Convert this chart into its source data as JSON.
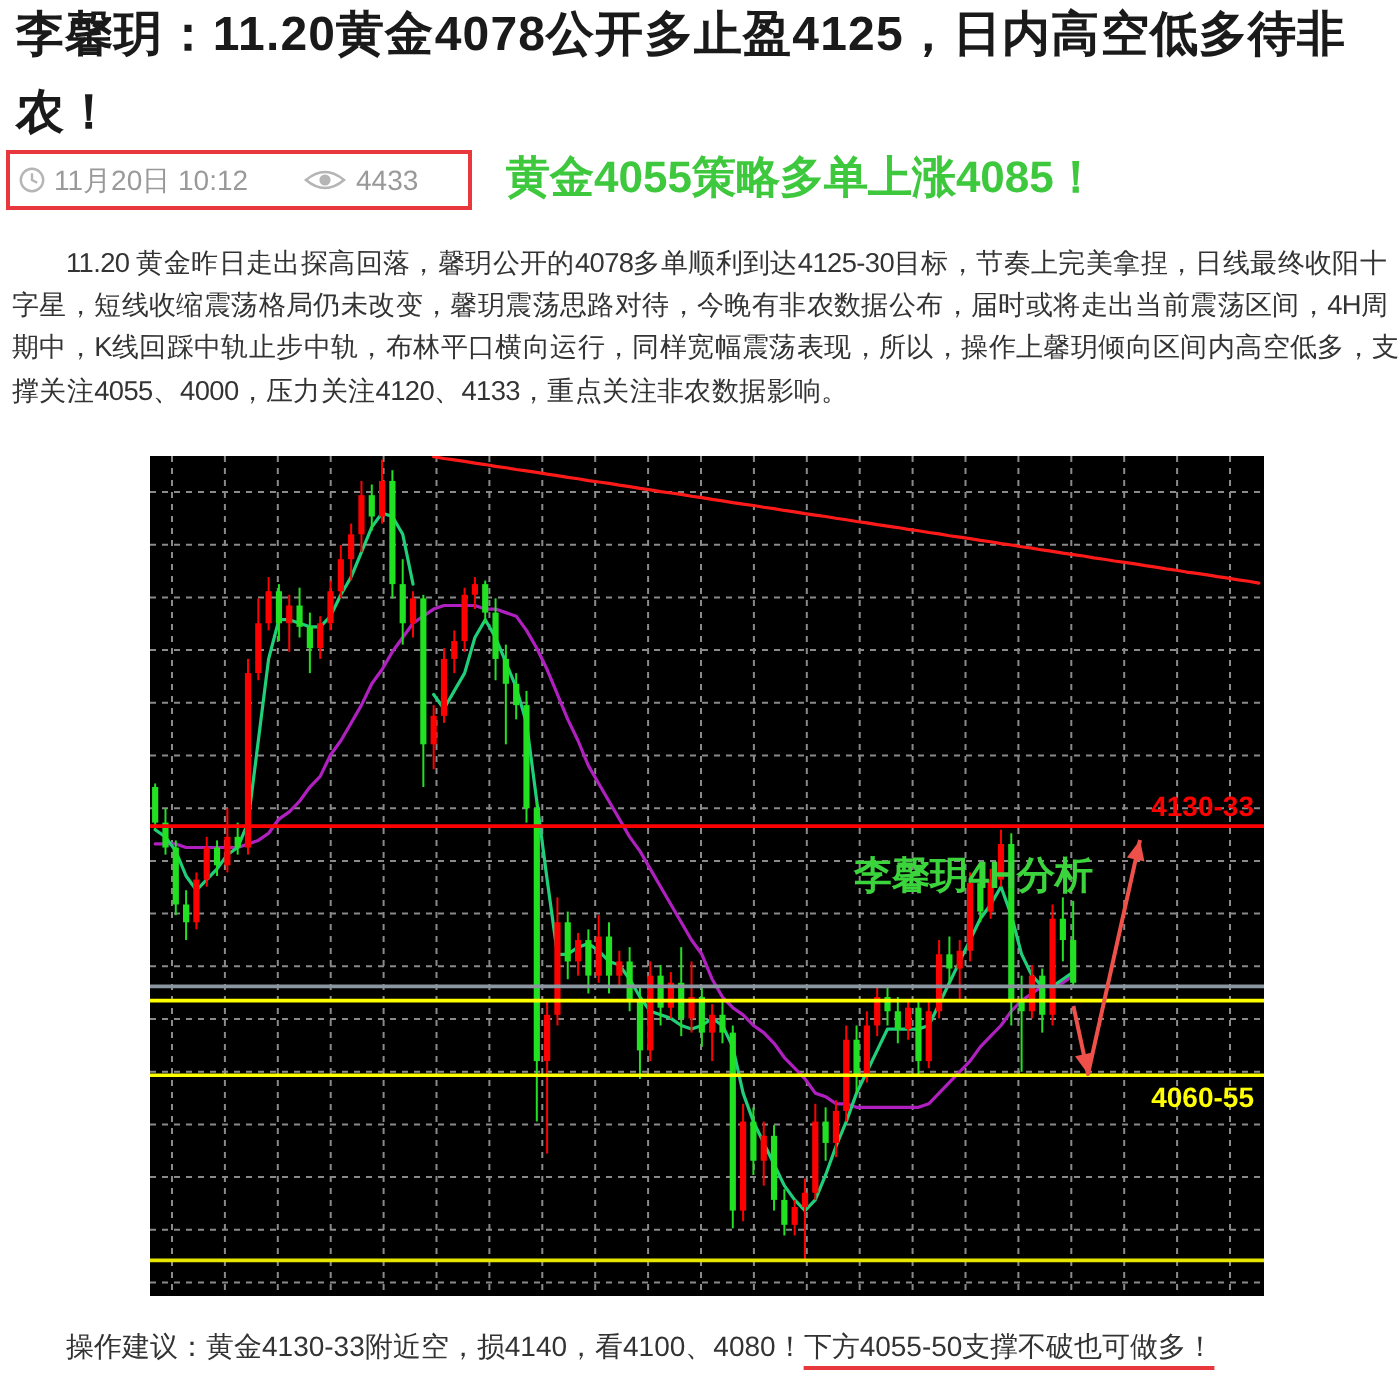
{
  "chart_data": {
    "type": "candlestick",
    "title": "李馨玥：11.20黄金4078公开多止盈4125，日内高空低多待非农！",
    "annotations": [
      "11月20日 10:12",
      "4433",
      "黄金4055策略多单上涨4085！",
      "11.20 黄金昨日走出探高回落，馨玥公开的4078多单顺利到达4125-30目标，节奏上完美拿捏，日线最终收阳十字星，短线收缩震荡格局仍未改变，馨玥震荡思路对待，今晚有非农数据公布，届时或将走出当前震荡区间，4H周期中，K线回踩中轨止步中轨，布林平口横向运行，同样宽幅震荡表现，所以，操作上馨玥倾向区间内高空低多，支撑关注4055、4000，压力关注4120、4133，重点关注非农数据影响。",
      "李馨玥4H分析",
      "操作建议：黄金4130-33附近空，损4140，看4100、4080！",
      "下方4055-50支撑不破也可做多！"
    ],
    "ylim": [
      3998,
      4234
    ],
    "grid": true,
    "categories": [
      null,
      null,
      null,
      null,
      null,
      null,
      null,
      null,
      null,
      null,
      null,
      null,
      null,
      null,
      null,
      null,
      null,
      null,
      null,
      null,
      null,
      null,
      null,
      null,
      null,
      null,
      null,
      null,
      null,
      null,
      null,
      null,
      null,
      null,
      null,
      null,
      null,
      null,
      null,
      null,
      null,
      null,
      null,
      null,
      null,
      null,
      null,
      null,
      null,
      null,
      null,
      null,
      null,
      null,
      null,
      null,
      null,
      null,
      null,
      null,
      null,
      null,
      null,
      null,
      null,
      null,
      null,
      null,
      null,
      null,
      null,
      null,
      null,
      null,
      null,
      null,
      null,
      null,
      null,
      null,
      null,
      null,
      null,
      null,
      null,
      null,
      null,
      null,
      null,
      null,
      null,
      null,
      null,
      null,
      null,
      null,
      null,
      null,
      null,
      null,
      null,
      null,
      null,
      null,
      null,
      null,
      null,
      null
    ],
    "ohlc": [
      [
        4141,
        4142,
        4129,
        4131
      ],
      [
        4131,
        4135,
        4122,
        4124
      ],
      [
        4124,
        4126,
        4105,
        4108
      ],
      [
        4108,
        4112,
        4098,
        4103
      ],
      [
        4103,
        4117,
        4101,
        4115
      ],
      [
        4115,
        4127,
        4113,
        4124
      ],
      [
        4124,
        4126,
        4116,
        4119
      ],
      [
        4119,
        4135,
        4117,
        4127
      ],
      [
        4127,
        4131,
        4122,
        4124
      ],
      [
        4124,
        4177,
        4122,
        4173
      ],
      [
        4173,
        4194,
        4171,
        4187
      ],
      [
        4187,
        4200,
        4185,
        4196
      ],
      [
        4196,
        4198,
        4182,
        4187
      ],
      [
        4187,
        4195,
        4179,
        4192
      ],
      [
        4192,
        4197,
        4183,
        4186
      ],
      [
        4186,
        4190,
        4173,
        4180
      ],
      [
        4180,
        4189,
        4177,
        4187
      ],
      [
        4187,
        4199,
        4185,
        4196
      ],
      [
        4196,
        4209,
        4194,
        4205
      ],
      [
        4205,
        4215,
        4199,
        4212
      ],
      [
        4212,
        4227,
        4207,
        4223
      ],
      [
        4223,
        4226,
        4213,
        4217
      ],
      [
        4217,
        4233,
        4215,
        4227
      ],
      [
        4227,
        4230,
        4194,
        4198
      ],
      [
        4198,
        4205,
        4181,
        4187
      ],
      [
        4187,
        4196,
        4183,
        4194
      ],
      [
        4194,
        4195,
        4141,
        4153
      ],
      [
        4153,
        4164,
        4146,
        4161
      ],
      [
        4161,
        4180,
        4159,
        4177
      ],
      [
        4177,
        4185,
        4173,
        4182
      ],
      [
        4182,
        4197,
        4179,
        4195
      ],
      [
        4195,
        4200,
        4191,
        4198
      ],
      [
        4198,
        4199,
        4187,
        4190
      ],
      [
        4190,
        4194,
        4171,
        4177
      ],
      [
        4177,
        4181,
        4153,
        4170
      ],
      [
        4170,
        4173,
        4160,
        4164
      ],
      [
        4164,
        4168,
        4131,
        4135
      ],
      [
        4135,
        4137,
        4047,
        4064
      ],
      [
        4064,
        4081,
        4038,
        4077
      ],
      [
        4077,
        4110,
        4074,
        4103
      ],
      [
        4103,
        4106,
        4087,
        4092
      ],
      [
        4092,
        4100,
        4088,
        4098
      ],
      [
        4098,
        4101,
        4083,
        4088
      ],
      [
        4088,
        4105,
        4086,
        4099
      ],
      [
        4099,
        4103,
        4083,
        4088
      ],
      [
        4088,
        4095,
        4085,
        4092
      ],
      [
        4092,
        4096,
        4078,
        4081
      ],
      [
        4081,
        4085,
        4059,
        4067
      ],
      [
        4067,
        4092,
        4064,
        4088
      ],
      [
        4088,
        4091,
        4074,
        4079
      ],
      [
        4079,
        4089,
        4076,
        4086
      ],
      [
        4086,
        4096,
        4071,
        4076
      ],
      [
        4076,
        4092,
        4072,
        4082
      ],
      [
        4082,
        4085,
        4068,
        4072
      ],
      [
        4072,
        4080,
        4064,
        4077
      ],
      [
        4077,
        4081,
        4069,
        4072
      ],
      [
        4072,
        4074,
        4017,
        4022
      ],
      [
        4022,
        4052,
        4019,
        4047
      ],
      [
        4047,
        4051,
        4032,
        4036
      ],
      [
        4036,
        4047,
        4029,
        4043
      ],
      [
        4043,
        4046,
        4022,
        4025
      ],
      [
        4025,
        4028,
        4015,
        4018
      ],
      [
        4018,
        4025,
        4015,
        4023
      ],
      [
        4023,
        4031,
        4008,
        4027
      ],
      [
        4027,
        4052,
        4025,
        4047
      ],
      [
        4047,
        4051,
        4036,
        4041
      ],
      [
        4041,
        4053,
        4037,
        4050
      ],
      [
        4050,
        4074,
        4047,
        4070
      ],
      [
        4070,
        4074,
        4055,
        4060
      ],
      [
        4060,
        4078,
        4058,
        4074
      ],
      [
        4074,
        4085,
        4071,
        4082
      ],
      [
        4082,
        4085,
        4074,
        4078
      ],
      [
        4078,
        4082,
        4069,
        4073
      ],
      [
        4073,
        4081,
        4070,
        4079
      ],
      [
        4079,
        4081,
        4060,
        4064
      ],
      [
        4064,
        4081,
        4062,
        4078
      ],
      [
        4078,
        4098,
        4076,
        4094
      ],
      [
        4094,
        4099,
        4086,
        4090
      ],
      [
        4090,
        4098,
        4081,
        4095
      ],
      [
        4095,
        4117,
        4092,
        4114
      ],
      [
        4114,
        4119,
        4103,
        4106
      ],
      [
        4106,
        4118,
        4104,
        4115
      ],
      [
        4115,
        4129,
        4113,
        4125
      ],
      [
        4125,
        4128,
        4074,
        4081
      ],
      [
        4081,
        4088,
        4061,
        4078
      ],
      [
        4078,
        4091,
        4076,
        4088
      ],
      [
        4088,
        4090,
        4072,
        4077
      ],
      [
        4077,
        4108,
        4074,
        4104
      ],
      [
        4104,
        4110,
        4092,
        4098
      ],
      [
        4098,
        4109,
        4085,
        4086
      ],
      null,
      null,
      null,
      null,
      null,
      null,
      null,
      null,
      null,
      null,
      null,
      null,
      null,
      null,
      null,
      null,
      null,
      null
    ],
    "colors": [
      "#22e022",
      "#22e022",
      "#22e022",
      "#22e022",
      "#ff0000",
      "#ff0000",
      "#22e022",
      "#ff0000",
      "#22e022",
      "#ff0000",
      "#ff0000",
      "#ff0000",
      "#22e022",
      "#ff0000",
      "#22e022",
      "#22e022",
      "#ff0000",
      "#ff0000",
      "#ff0000",
      "#ff0000",
      "#ff0000",
      "#22e022",
      "#ff0000",
      "#22e022",
      "#22e022",
      "#ff0000",
      "#22e022",
      "#ff0000",
      "#ff0000",
      "#ff0000",
      "#ff0000",
      "#ff0000",
      "#22e022",
      "#22e022",
      "#22e022",
      "#22e022",
      "#22e022",
      "#22e022",
      "#ff0000",
      "#ff0000",
      "#22e022",
      "#ff0000",
      "#22e022",
      "#ff0000",
      "#22e022",
      "#ff0000",
      "#22e022",
      "#22e022",
      "#ff0000",
      "#22e022",
      "#ff0000",
      "#22e022",
      "#ff0000",
      "#22e022",
      "#ff0000",
      "#22e022",
      "#22e022",
      "#ff0000",
      "#22e022",
      "#ff0000",
      "#22e022",
      "#22e022",
      "#ff0000",
      "#ff0000",
      "#ff0000",
      "#22e022",
      "#ff0000",
      "#ff0000",
      "#22e022",
      "#ff0000",
      "#ff0000",
      "#22e022",
      "#22e022",
      "#ff0000",
      "#22e022",
      "#ff0000",
      "#ff0000",
      "#22e022",
      "#ff0000",
      "#ff0000",
      "#22e022",
      "#ff0000",
      "#ff0000",
      "#22e022",
      "#22e022",
      "#ff0000",
      "#22e022",
      "#ff0000",
      "#22e022",
      "#22e022",
      null,
      null,
      null,
      null,
      null,
      null,
      null,
      null,
      null,
      null,
      null,
      null,
      null,
      null,
      null,
      null,
      null,
      null
    ],
    "series": [
      {
        "type": "line",
        "color": "#ff1a1a",
        "values": [
          null,
          null,
          null,
          null,
          null,
          null,
          null,
          null,
          null,
          null,
          null,
          null,
          null,
          null,
          null,
          null,
          null,
          null,
          null,
          null,
          null,
          null,
          null,
          null,
          null,
          null,
          null,
          4233.8,
          4233.3,
          4232.9,
          4232.5,
          4232.0,
          4231.6,
          4231.1,
          4230.7,
          4230.2,
          4229.8,
          4229.4,
          4228.9,
          4228.5,
          4228.0,
          4227.6,
          4227.1,
          4226.7,
          4226.3,
          4225.8,
          4225.4,
          4224.9,
          4224.5,
          4224.0,
          4223.6,
          4223.2,
          4222.7,
          4222.3,
          4221.8,
          4221.4,
          4220.9,
          4220.5,
          4220.1,
          4219.6,
          4219.2,
          4218.7,
          4218.3,
          4217.8,
          4217.4,
          4217.0,
          4216.5,
          4216.1,
          4215.6,
          4215.2,
          4214.7,
          4214.3,
          4213.9,
          4213.4,
          4213.0,
          4212.5,
          4212.1,
          4211.6,
          4211.2,
          4210.8,
          4210.3,
          4209.9,
          4209.4,
          4209.0,
          4208.5,
          4208.1,
          4207.6,
          4207.2,
          4206.7,
          4206.3,
          4205.9,
          4205.4,
          4205.0,
          4204.5,
          4204.1,
          4203.7,
          4203.2,
          4202.8,
          4202.3,
          4201.9,
          4201.4,
          4201.0,
          4200.6,
          4200.1,
          4199.7,
          4199.2,
          4198.8,
          4198.3
        ]
      },
      {
        "type": "line",
        "color": "#b020c0",
        "values": [
          4125,
          4125,
          4125,
          4124,
          4124,
          4124,
          4124,
          4124,
          4124,
          4125,
          4126,
          4128,
          4132,
          4134,
          4137,
          4141,
          4144,
          4150,
          4154,
          4159,
          4164,
          4170,
          4174,
          4179,
          4183,
          4187,
          4189,
          4191,
          4192,
          4192,
          4192,
          4192,
          4191,
          4191,
          4190,
          4189,
          4185,
          4180,
          4174,
          4167,
          4160,
          4154,
          4147,
          4142,
          4137,
          4132,
          4127,
          4123,
          4118,
          4113,
          4108,
          4103,
          4098,
          4094,
          4087,
          4082,
          4079,
          4077,
          4074,
          4072,
          4069,
          4065,
          4062,
          4059,
          4055,
          4054,
          4052,
          4052,
          4051,
          4051,
          4051,
          4051,
          4051,
          4051,
          4051,
          4052,
          4055,
          4058,
          4061,
          4064,
          4068,
          4071,
          4074,
          4078,
          4081,
          4083,
          4085,
          4085,
          4086,
          4088,
          null,
          null,
          null,
          null,
          null,
          null,
          null,
          null,
          null,
          null,
          null,
          null,
          null,
          null,
          null,
          null,
          null,
          null
        ]
      },
      {
        "type": "line",
        "color": "#1fcf7a",
        "values": [
          4129,
          4127,
          4123,
          4116,
          4112,
          4115,
          4118,
          4122,
          4124,
          4131,
          4154,
          4177,
          4188,
          4188,
          4187,
          4186,
          4186,
          4189,
          4195,
          4200,
          4207,
          4214,
          4218,
          4217,
          4212,
          4198,
          null,
          4167,
          4163,
          4168,
          4173,
          4183,
          4188,
          4183,
          4176,
          4169,
          4159,
          4137,
          4115,
          4094,
          4094,
          4096,
          4097,
          4095,
          4092,
          4091,
          4087,
          4082,
          4078,
          4077,
          4076,
          4074,
          4073,
          4074,
          4076,
          4074,
          4068,
          4055,
          4047,
          4041,
          4035,
          4029,
          4025,
          4022,
          4025,
          4032,
          4040,
          4047,
          4055,
          4061,
          4067,
          4073,
          4073,
          4073,
          4073,
          4074,
          4080,
          4086,
          4092,
          4098,
          4104,
          4108,
          4113,
          4105,
          4094,
          4088,
          4085,
          4085,
          4087,
          4089,
          null,
          null,
          null,
          null,
          null,
          null,
          null,
          null,
          null,
          null,
          null,
          null,
          null,
          null,
          null,
          null,
          null,
          null
        ]
      }
    ],
    "ref_lines": [
      {
        "axis": "y",
        "value": 4130,
        "label": "4130-33",
        "color": "#ff0000"
      },
      {
        "axis": "y",
        "value": 4085,
        "color": "#8c96a0"
      },
      {
        "axis": "y",
        "value": 4081,
        "color": "#ffff00"
      },
      {
        "axis": "y",
        "value": 4060,
        "label": "4060-55",
        "color": "#ffff00"
      },
      {
        "axis": "y",
        "value": 4008,
        "color": "#e6e600"
      }
    ]
  }
}
